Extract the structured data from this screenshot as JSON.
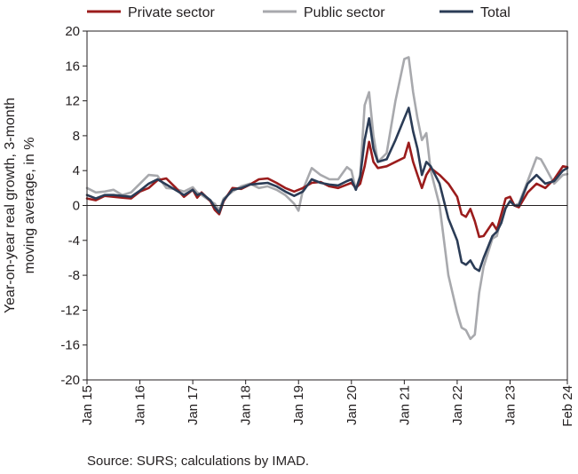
{
  "chart_data": {
    "type": "line",
    "ylabel_lines": [
      "Year-on-year real growth, 3-month",
      "moving average, in %"
    ],
    "ylim": [
      -20,
      20
    ],
    "yticks": [
      20,
      16,
      12,
      8,
      4,
      0,
      -4,
      -8,
      -12,
      -16,
      -20
    ],
    "xrange": [
      "2015-01",
      "2024-02"
    ],
    "xticks": [
      {
        "x": "2015-01",
        "label": "Jan 15"
      },
      {
        "x": "2016-01",
        "label": "Jan 16"
      },
      {
        "x": "2017-01",
        "label": "Jan 17"
      },
      {
        "x": "2018-01",
        "label": "Jan 18"
      },
      {
        "x": "2019-01",
        "label": "Jan 19"
      },
      {
        "x": "2020-01",
        "label": "Jan 20"
      },
      {
        "x": "2021-01",
        "label": "Jan 21"
      },
      {
        "x": "2022-01",
        "label": "Jan 22"
      },
      {
        "x": "2023-01",
        "label": "Jan 23"
      },
      {
        "x": "2024-02",
        "label": "Feb 24"
      }
    ],
    "grid": false,
    "legend_position": "top",
    "series": [
      {
        "name": "Private sector",
        "color": "#9b1c1c",
        "points": [
          [
            "2015-01",
            0.8
          ],
          [
            "2015-03",
            0.6
          ],
          [
            "2015-05",
            1.1
          ],
          [
            "2015-07",
            1.0
          ],
          [
            "2015-09",
            0.9
          ],
          [
            "2015-11",
            0.8
          ],
          [
            "2016-01",
            1.6
          ],
          [
            "2016-03",
            2.0
          ],
          [
            "2016-05",
            2.9
          ],
          [
            "2016-07",
            3.1
          ],
          [
            "2016-09",
            2.1
          ],
          [
            "2016-11",
            1.0
          ],
          [
            "2017-01",
            1.8
          ],
          [
            "2017-02",
            0.9
          ],
          [
            "2017-03",
            1.5
          ],
          [
            "2017-05",
            0.5
          ],
          [
            "2017-06",
            -0.5
          ],
          [
            "2017-07",
            -1.0
          ],
          [
            "2017-08",
            0.5
          ],
          [
            "2017-10",
            2.0
          ],
          [
            "2017-12",
            1.9
          ],
          [
            "2018-02",
            2.4
          ],
          [
            "2018-04",
            3.0
          ],
          [
            "2018-06",
            3.1
          ],
          [
            "2018-08",
            2.6
          ],
          [
            "2018-10",
            2.0
          ],
          [
            "2018-12",
            1.6
          ],
          [
            "2019-02",
            2.0
          ],
          [
            "2019-04",
            2.6
          ],
          [
            "2019-06",
            2.7
          ],
          [
            "2019-08",
            2.2
          ],
          [
            "2019-10",
            2.0
          ],
          [
            "2019-12",
            2.4
          ],
          [
            "2020-01",
            2.6
          ],
          [
            "2020-02",
            2.0
          ],
          [
            "2020-03",
            2.5
          ],
          [
            "2020-04",
            4.5
          ],
          [
            "2020-05",
            7.3
          ],
          [
            "2020-06",
            5.0
          ],
          [
            "2020-07",
            4.3
          ],
          [
            "2020-09",
            4.5
          ],
          [
            "2020-11",
            5.0
          ],
          [
            "2021-01",
            5.5
          ],
          [
            "2021-02",
            7.2
          ],
          [
            "2021-03",
            5.0
          ],
          [
            "2021-04",
            3.5
          ],
          [
            "2021-05",
            2.0
          ],
          [
            "2021-06",
            3.5
          ],
          [
            "2021-07",
            4.3
          ],
          [
            "2021-09",
            3.5
          ],
          [
            "2021-11",
            2.5
          ],
          [
            "2022-01",
            1.0
          ],
          [
            "2022-02",
            -1.0
          ],
          [
            "2022-03",
            -1.3
          ],
          [
            "2022-04",
            -0.4
          ],
          [
            "2022-05",
            -1.8
          ],
          [
            "2022-06",
            -3.6
          ],
          [
            "2022-07",
            -3.5
          ],
          [
            "2022-09",
            -2.0
          ],
          [
            "2022-10",
            -2.8
          ],
          [
            "2022-11",
            -1.0
          ],
          [
            "2022-12",
            0.8
          ],
          [
            "2023-01",
            1.0
          ],
          [
            "2023-02",
            0.0
          ],
          [
            "2023-03",
            -0.2
          ],
          [
            "2023-05",
            1.5
          ],
          [
            "2023-07",
            2.5
          ],
          [
            "2023-09",
            2.0
          ],
          [
            "2023-11",
            3.0
          ],
          [
            "2024-01",
            4.5
          ],
          [
            "2024-02",
            4.4
          ]
        ]
      },
      {
        "name": "Public sector",
        "color": "#a8a9ad",
        "points": [
          [
            "2015-01",
            2.0
          ],
          [
            "2015-03",
            1.5
          ],
          [
            "2015-05",
            1.6
          ],
          [
            "2015-07",
            1.8
          ],
          [
            "2015-09",
            1.2
          ],
          [
            "2015-11",
            1.5
          ],
          [
            "2016-01",
            2.5
          ],
          [
            "2016-03",
            3.5
          ],
          [
            "2016-05",
            3.4
          ],
          [
            "2016-07",
            2.0
          ],
          [
            "2016-09",
            1.9
          ],
          [
            "2016-11",
            1.6
          ],
          [
            "2017-01",
            2.1
          ],
          [
            "2017-02",
            1.5
          ],
          [
            "2017-03",
            1.2
          ],
          [
            "2017-05",
            0.5
          ],
          [
            "2017-06",
            0.2
          ],
          [
            "2017-07",
            -0.5
          ],
          [
            "2017-08",
            0.8
          ],
          [
            "2017-10",
            1.6
          ],
          [
            "2017-12",
            2.2
          ],
          [
            "2018-02",
            2.5
          ],
          [
            "2018-04",
            2.0
          ],
          [
            "2018-06",
            2.2
          ],
          [
            "2018-08",
            1.8
          ],
          [
            "2018-10",
            1.2
          ],
          [
            "2018-12",
            0.2
          ],
          [
            "2019-01",
            -0.6
          ],
          [
            "2019-02",
            1.8
          ],
          [
            "2019-04",
            4.3
          ],
          [
            "2019-06",
            3.5
          ],
          [
            "2019-08",
            3.0
          ],
          [
            "2019-10",
            3.0
          ],
          [
            "2019-12",
            4.4
          ],
          [
            "2020-01",
            4.0
          ],
          [
            "2020-02",
            1.8
          ],
          [
            "2020-03",
            3.5
          ],
          [
            "2020-04",
            11.5
          ],
          [
            "2020-05",
            13.0
          ],
          [
            "2020-06",
            8.0
          ],
          [
            "2020-07",
            5.0
          ],
          [
            "2020-09",
            6.0
          ],
          [
            "2020-11",
            12.0
          ],
          [
            "2021-01",
            16.8
          ],
          [
            "2021-02",
            17.0
          ],
          [
            "2021-03",
            13.0
          ],
          [
            "2021-04",
            10.0
          ],
          [
            "2021-05",
            7.5
          ],
          [
            "2021-06",
            8.3
          ],
          [
            "2021-07",
            4.0
          ],
          [
            "2021-09",
            0.0
          ],
          [
            "2021-11",
            -8.0
          ],
          [
            "2022-01",
            -12.3
          ],
          [
            "2022-02",
            -14.0
          ],
          [
            "2022-03",
            -14.3
          ],
          [
            "2022-04",
            -15.3
          ],
          [
            "2022-05",
            -14.8
          ],
          [
            "2022-06",
            -10.0
          ],
          [
            "2022-07",
            -7.0
          ],
          [
            "2022-09",
            -3.8
          ],
          [
            "2022-10",
            -3.5
          ],
          [
            "2022-11",
            -1.3
          ],
          [
            "2022-12",
            -0.3
          ],
          [
            "2023-01",
            0.5
          ],
          [
            "2023-02",
            0.0
          ],
          [
            "2023-03",
            0.2
          ],
          [
            "2023-05",
            2.8
          ],
          [
            "2023-07",
            5.5
          ],
          [
            "2023-08",
            5.3
          ],
          [
            "2023-09",
            4.4
          ],
          [
            "2023-11",
            2.5
          ],
          [
            "2024-01",
            3.5
          ],
          [
            "2024-02",
            3.6
          ]
        ]
      },
      {
        "name": "Total",
        "color": "#2b3c56",
        "points": [
          [
            "2015-01",
            1.2
          ],
          [
            "2015-03",
            0.8
          ],
          [
            "2015-05",
            1.2
          ],
          [
            "2015-07",
            1.2
          ],
          [
            "2015-09",
            1.1
          ],
          [
            "2015-11",
            1.0
          ],
          [
            "2016-01",
            1.7
          ],
          [
            "2016-03",
            2.5
          ],
          [
            "2016-05",
            3.0
          ],
          [
            "2016-07",
            2.4
          ],
          [
            "2016-09",
            1.8
          ],
          [
            "2016-11",
            1.2
          ],
          [
            "2017-01",
            1.8
          ],
          [
            "2017-02",
            1.2
          ],
          [
            "2017-03",
            1.4
          ],
          [
            "2017-05",
            0.6
          ],
          [
            "2017-06",
            -0.2
          ],
          [
            "2017-07",
            -0.8
          ],
          [
            "2017-08",
            0.6
          ],
          [
            "2017-10",
            1.8
          ],
          [
            "2017-12",
            2.0
          ],
          [
            "2018-02",
            2.4
          ],
          [
            "2018-04",
            2.5
          ],
          [
            "2018-06",
            2.6
          ],
          [
            "2018-08",
            2.2
          ],
          [
            "2018-10",
            1.6
          ],
          [
            "2018-12",
            1.1
          ],
          [
            "2019-02",
            1.6
          ],
          [
            "2019-04",
            3.0
          ],
          [
            "2019-06",
            2.6
          ],
          [
            "2019-08",
            2.4
          ],
          [
            "2019-10",
            2.3
          ],
          [
            "2019-12",
            2.8
          ],
          [
            "2020-01",
            3.0
          ],
          [
            "2020-02",
            1.8
          ],
          [
            "2020-03",
            3.3
          ],
          [
            "2020-04",
            7.5
          ],
          [
            "2020-05",
            10.0
          ],
          [
            "2020-06",
            6.5
          ],
          [
            "2020-07",
            5.0
          ],
          [
            "2020-09",
            5.3
          ],
          [
            "2020-11",
            7.5
          ],
          [
            "2021-01",
            10.0
          ],
          [
            "2021-02",
            11.2
          ],
          [
            "2021-03",
            8.5
          ],
          [
            "2021-04",
            6.5
          ],
          [
            "2021-05",
            3.5
          ],
          [
            "2021-06",
            5.0
          ],
          [
            "2021-07",
            4.5
          ],
          [
            "2021-09",
            2.5
          ],
          [
            "2021-11",
            -1.5
          ],
          [
            "2022-01",
            -4.0
          ],
          [
            "2022-02",
            -6.5
          ],
          [
            "2022-03",
            -6.8
          ],
          [
            "2022-04",
            -6.3
          ],
          [
            "2022-05",
            -7.2
          ],
          [
            "2022-06",
            -7.5
          ],
          [
            "2022-07",
            -6.0
          ],
          [
            "2022-09",
            -3.5
          ],
          [
            "2022-10",
            -3.0
          ],
          [
            "2022-11",
            -2.0
          ],
          [
            "2022-12",
            -0.3
          ],
          [
            "2023-01",
            0.5
          ],
          [
            "2023-02",
            0.0
          ],
          [
            "2023-03",
            0.0
          ],
          [
            "2023-05",
            2.5
          ],
          [
            "2023-07",
            3.5
          ],
          [
            "2023-09",
            2.5
          ],
          [
            "2023-11",
            2.8
          ],
          [
            "2024-01",
            4.0
          ],
          [
            "2024-02",
            4.3
          ]
        ]
      }
    ]
  },
  "source": "Source: SURS; calculations by IMAD."
}
